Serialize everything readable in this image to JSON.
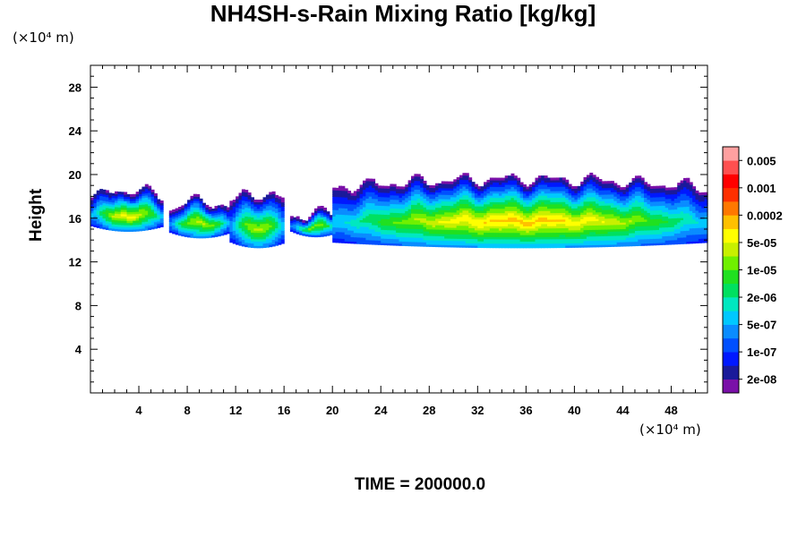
{
  "chart_data": {
    "type": "heatmap",
    "title": "NH4SH-s-Rain Mixing Ratio [kg/kg]",
    "ylabel": "Height",
    "y_unit": "(×10⁴ m)",
    "x_unit": "(×10⁴ m)",
    "footer": "TIME = 200000.0",
    "xlim": [
      0,
      51
    ],
    "ylim": [
      0,
      30
    ],
    "x_ticks": [
      4,
      8,
      12,
      16,
      20,
      24,
      28,
      32,
      36,
      40,
      44,
      48
    ],
    "y_ticks": [
      4,
      8,
      12,
      16,
      20,
      24,
      28
    ],
    "colorbar": {
      "labels": [
        "0.005",
        "0.001",
        "0.0002",
        "5e-05",
        "1e-05",
        "2e-06",
        "5e-07",
        "1e-07",
        "2e-08"
      ],
      "colors": [
        "#7a10a8",
        "#1a1a9a",
        "#0018ff",
        "#0050ff",
        "#0a8cff",
        "#00c8ff",
        "#00e8c0",
        "#00e060",
        "#20e020",
        "#70f000",
        "#c8f000",
        "#ffff00",
        "#ffc000",
        "#ff7800",
        "#ff3000",
        "#ff0000",
        "#ff5050",
        "#ffa0a0"
      ]
    },
    "regions": [
      {
        "x_range": [
          0,
          6
        ],
        "y_base": 14.8,
        "y_top": 18.5,
        "peak": 11
      },
      {
        "x_range": [
          6.5,
          11.5
        ],
        "y_base": 14.2,
        "y_top": 17.5,
        "peak": 10
      },
      {
        "x_range": [
          11.5,
          16
        ],
        "y_base": 13.3,
        "y_top": 18.2,
        "peak": 10
      },
      {
        "x_range": [
          16.5,
          20.5
        ],
        "y_base": 14.3,
        "y_top": 16.5,
        "peak": 9
      },
      {
        "x_range": [
          20,
          51
        ],
        "y_base": 13.3,
        "y_top": 19.5,
        "peak": 12
      }
    ]
  }
}
